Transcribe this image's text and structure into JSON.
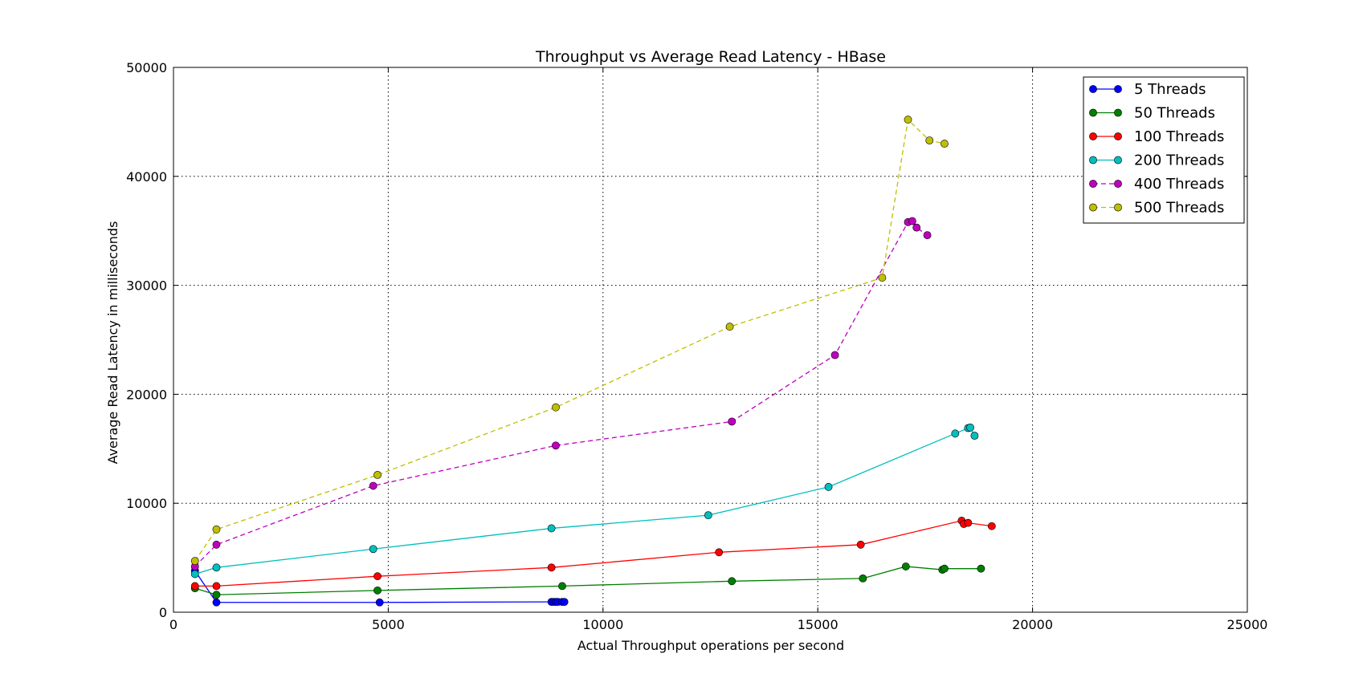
{
  "chart_data": {
    "type": "line",
    "title": "Throughput vs Average Read Latency - HBase",
    "xlabel": "Actual Throughput operations per second",
    "ylabel": "Average Read Latency in milliseconds",
    "xlim": [
      0,
      25000
    ],
    "ylim": [
      0,
      50000
    ],
    "x_ticks": [
      0,
      5000,
      10000,
      15000,
      20000,
      25000
    ],
    "y_ticks": [
      0,
      10000,
      20000,
      30000,
      40000,
      50000
    ],
    "x_tick_labels": [
      "0",
      "5000",
      "10000",
      "15000",
      "20000",
      "25000"
    ],
    "y_tick_labels": [
      "0",
      "10000",
      "20000",
      "30000",
      "40000",
      "50000"
    ],
    "grid": true,
    "legend_position": "top-right",
    "series": [
      {
        "name": "5 Threads",
        "color": "#0000ff",
        "style": "solid",
        "points": [
          [
            500,
            3800
          ],
          [
            1000,
            900
          ],
          [
            4800,
            900
          ],
          [
            8800,
            950
          ],
          [
            8850,
            950
          ],
          [
            8900,
            950
          ],
          [
            8950,
            950
          ],
          [
            9050,
            950
          ],
          [
            9100,
            950
          ]
        ]
      },
      {
        "name": "50 Threads",
        "color": "#007f00",
        "style": "solid",
        "points": [
          [
            500,
            2200
          ],
          [
            1000,
            1600
          ],
          [
            4750,
            2000
          ],
          [
            9050,
            2400
          ],
          [
            13000,
            2850
          ],
          [
            16050,
            3100
          ],
          [
            17050,
            4200
          ],
          [
            17900,
            3900
          ],
          [
            17950,
            4000
          ],
          [
            18800,
            4000
          ]
        ]
      },
      {
        "name": "100 Threads",
        "color": "#ff0000",
        "style": "solid",
        "points": [
          [
            500,
            2400
          ],
          [
            1000,
            2400
          ],
          [
            4750,
            3300
          ],
          [
            8800,
            4100
          ],
          [
            12700,
            5500
          ],
          [
            16000,
            6200
          ],
          [
            18350,
            8400
          ],
          [
            18400,
            8100
          ],
          [
            18500,
            8200
          ],
          [
            19050,
            7900
          ]
        ]
      },
      {
        "name": "200 Threads",
        "color": "#00bfbf",
        "style": "solid",
        "points": [
          [
            500,
            3500
          ],
          [
            1000,
            4100
          ],
          [
            4650,
            5800
          ],
          [
            8800,
            7700
          ],
          [
            12450,
            8900
          ],
          [
            15250,
            11500
          ],
          [
            18200,
            16400
          ],
          [
            18500,
            16900
          ],
          [
            18550,
            16950
          ],
          [
            18650,
            16200
          ]
        ]
      },
      {
        "name": "400 Threads",
        "color": "#bf00bf",
        "style": "dashed",
        "points": [
          [
            500,
            4200
          ],
          [
            1000,
            6200
          ],
          [
            4650,
            11600
          ],
          [
            8900,
            15300
          ],
          [
            13000,
            17500
          ],
          [
            15400,
            23600
          ],
          [
            17100,
            35800
          ],
          [
            17200,
            35900
          ],
          [
            17300,
            35300
          ],
          [
            17550,
            34600
          ]
        ]
      },
      {
        "name": "500 Threads",
        "color": "#bfbf00",
        "style": "dashed",
        "points": [
          [
            500,
            4700
          ],
          [
            1000,
            7600
          ],
          [
            4750,
            12600
          ],
          [
            8900,
            18800
          ],
          [
            12950,
            26200
          ],
          [
            16500,
            30700
          ],
          [
            17100,
            45200
          ],
          [
            17600,
            43300
          ],
          [
            17950,
            43000
          ]
        ]
      }
    ]
  }
}
